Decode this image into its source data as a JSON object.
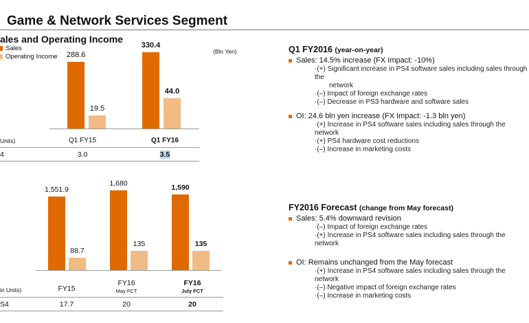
{
  "title": "Game & Network Services Segment",
  "chart_subtitle": "ales and Operating Income",
  "unit": "(Bln Yen)",
  "colors": {
    "sales": "#e06a00",
    "operating_income": "#f0bb85"
  },
  "chart_data": [
    {
      "type": "bar",
      "legend": [
        "Sales",
        "Operating Income"
      ],
      "categories": [
        "Q1 FY15",
        "Q1 FY16"
      ],
      "series": [
        {
          "name": "Sales",
          "values": [
            288.6,
            330.4
          ],
          "labels": [
            "288.6",
            "330.4"
          ]
        },
        {
          "name": "Operating Income",
          "values": [
            19.5,
            44.0
          ],
          "labels": [
            "19.5",
            "44.0"
          ]
        }
      ],
      "units_row": {
        "header": "Units)",
        "label": "4",
        "values": [
          "3.0",
          "3.5"
        ]
      }
    },
    {
      "type": "bar",
      "categories": [
        {
          "main": "FY15",
          "sub": ""
        },
        {
          "main": "FY16",
          "sub": "May FCT"
        },
        {
          "main": "FY16",
          "sub": "July FCT"
        }
      ],
      "series": [
        {
          "name": "Sales",
          "values": [
            1551.9,
            1680,
            1590
          ],
          "labels": [
            "1,551.9",
            "1,680",
            "1,590"
          ]
        },
        {
          "name": "Operating Income",
          "values": [
            88.7,
            135,
            135
          ],
          "labels": [
            "88.7",
            "135",
            "135"
          ]
        }
      ],
      "units_row": {
        "header": "in Units)",
        "label": "S4",
        "values": [
          "17.7",
          "20",
          "20"
        ]
      }
    }
  ],
  "q1": {
    "heading": "Q1 FY2016",
    "heading_note": "(year-on-year)",
    "sales": "Sales: 14.5% increase (FX Impact:  -10%)",
    "sales_items": [
      "·(+) Significant increase in PS4 software sales including sales through the",
      "network",
      "·(–) Impact of foreign exchange rates",
      "·(–) Decrease in PS3 hardware and software sales"
    ],
    "oi": "OI:  24.6 bln yen increase (FX Impact:  -1.3 bln yen)",
    "oi_items": [
      "·(+) Increase in PS4 software sales including sales through the network",
      "·(+) PS4 hardware cost reductions",
      "·(–) Increase in marketing costs"
    ]
  },
  "fct": {
    "heading": "FY2016 Forecast",
    "heading_note": "(change from May forecast)",
    "sales": "Sales: 5.4% downward revision",
    "sales_items": [
      "·(–) Impact of foreign exchange rates",
      "·(+) Increase in PS4 software sales including sales through the network"
    ],
    "oi": "OI: Remains unchanged from the May forecast",
    "oi_items": [
      "·(+) Increase in PS4 software sales including sales through the network",
      "·(–) Negative impact of foreign exchange rates",
      "·(–) Increase in marketing costs"
    ]
  }
}
